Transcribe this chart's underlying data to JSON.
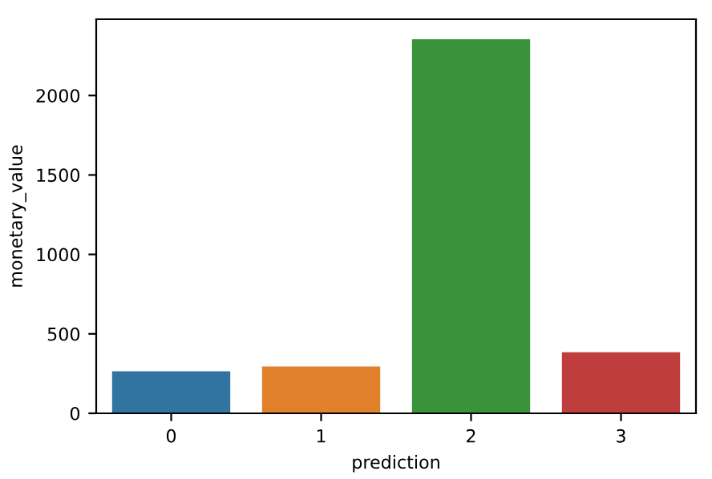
{
  "chart_data": {
    "type": "bar",
    "xlabel": "prediction",
    "ylabel": "monetary_value",
    "categories": [
      "0",
      "1",
      "2",
      "3"
    ],
    "values": [
      270,
      300,
      2360,
      390
    ],
    "colors": [
      "#3274a1",
      "#e1812c",
      "#3a923a",
      "#c03d3e"
    ],
    "ylim": [
      0,
      2480
    ],
    "yticks": [
      0,
      500,
      1000,
      1500,
      2000
    ],
    "grid": false
  }
}
